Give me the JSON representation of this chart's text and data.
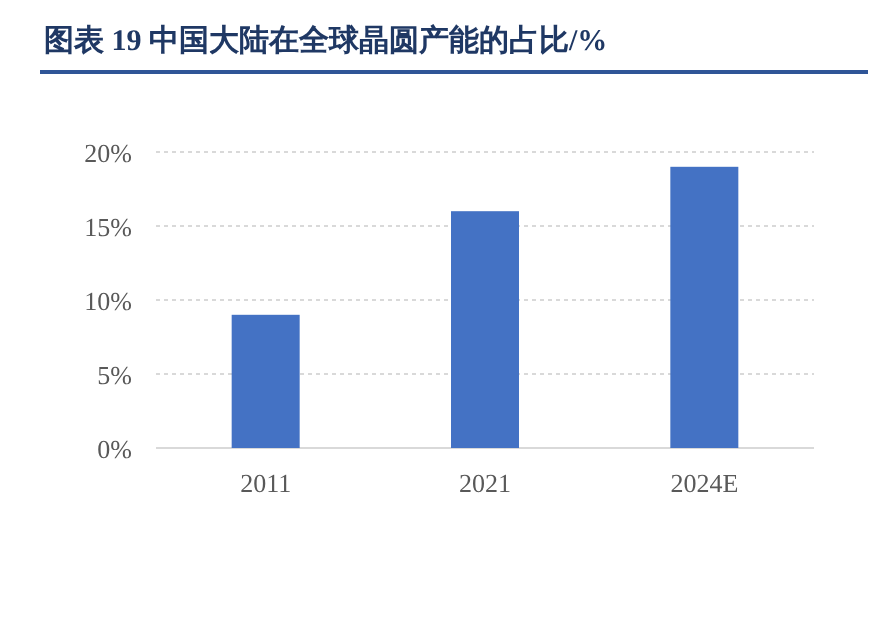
{
  "chart_data": {
    "type": "bar",
    "title": "图表 19  中国大陆在全球晶圆产能的占比/%",
    "categories": [
      "2011",
      "2021",
      "2024E"
    ],
    "values": [
      9,
      16,
      19
    ],
    "color": "#4472c4",
    "ylim": [
      0,
      20
    ],
    "yticks": [
      {
        "value": 0,
        "label": "0%"
      },
      {
        "value": 5,
        "label": "5%"
      },
      {
        "value": 10,
        "label": "10%"
      },
      {
        "value": 15,
        "label": "15%"
      },
      {
        "value": 20,
        "label": "20%"
      }
    ],
    "grid": "y"
  }
}
